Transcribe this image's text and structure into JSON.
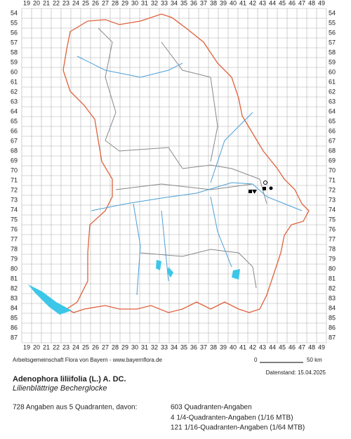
{
  "map": {
    "columns": [
      19,
      20,
      21,
      22,
      23,
      24,
      25,
      26,
      27,
      28,
      29,
      30,
      31,
      32,
      33,
      34,
      35,
      36,
      37,
      38,
      39,
      40,
      41,
      42,
      43,
      44,
      45,
      46,
      47,
      48,
      49
    ],
    "rows": [
      54,
      55,
      56,
      57,
      58,
      59,
      60,
      61,
      62,
      63,
      64,
      65,
      66,
      67,
      68,
      69,
      70,
      71,
      72,
      73,
      74,
      75,
      76,
      77,
      78,
      79,
      80,
      81,
      82,
      83,
      84,
      85,
      86,
      87
    ]
  },
  "footer": {
    "credit": "Arbeitsgemeinschaft Flora von Bayern - www.bayernflora.de",
    "scale_start": "0",
    "scale_end": "50 km",
    "date": "Datenstand: 15.04.2025",
    "title": "Adenophora liliifolia (L.) A. DC.",
    "subtitle": "Lilienblättrige Becherglocke",
    "summary": "728 Angaben aus 5 Quadranten, davon:",
    "details": [
      "603 Quadranten-Angaben",
      "4 1/4-Quadranten-Angaben (1/16 MTB)",
      "121 1/16-Quadranten-Angaben (1/64 MTB)"
    ]
  }
}
